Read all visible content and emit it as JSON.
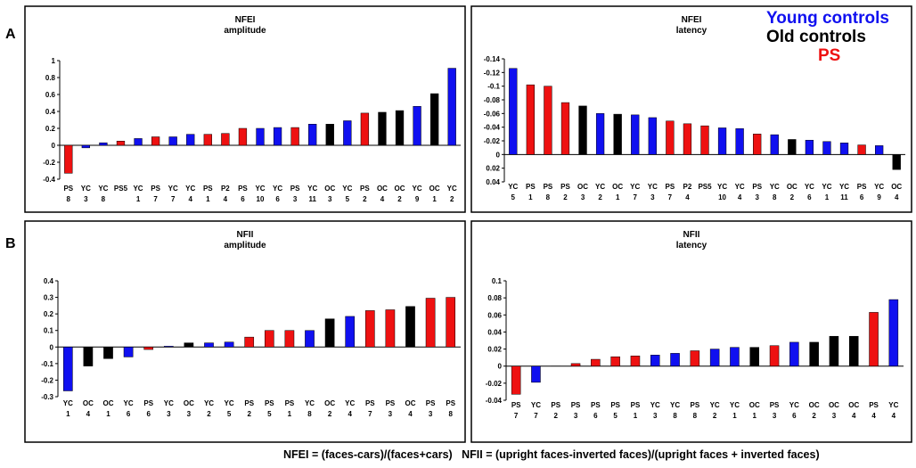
{
  "colors": {
    "YC": "#1010f0",
    "OC": "#000000",
    "PS": "#ee1111",
    "P2": "#ee1111"
  },
  "section_labels": {
    "a": "A",
    "b": "B"
  },
  "legend": {
    "young": "Young controls",
    "old": "Old controls",
    "ps": "PS"
  },
  "footer": {
    "nfei_def": "NFEI = (faces-cars)/(faces+cars)",
    "nfii_def": "NFII = (upright faces-inverted faces)/(upright faces + inverted faces)"
  },
  "chart_data": [
    {
      "type": "bar",
      "title": "NFEI",
      "subtitle": "amplitude",
      "ylim": [
        -0.4,
        1
      ],
      "yticks": [
        "1",
        "0.8",
        "0.6",
        "0.4",
        "0.2",
        "0",
        "-0.2",
        "-0.4"
      ],
      "categories": [
        {
          "g": "PS",
          "n": "8"
        },
        {
          "g": "YC",
          "n": "3"
        },
        {
          "g": "YC",
          "n": "8"
        },
        {
          "g": "PS5",
          "n": ""
        },
        {
          "g": "YC",
          "n": "1"
        },
        {
          "g": "PS",
          "n": "7"
        },
        {
          "g": "YC",
          "n": "7"
        },
        {
          "g": "YC",
          "n": "4"
        },
        {
          "g": "PS",
          "n": "1"
        },
        {
          "g": "P2",
          "n": "4"
        },
        {
          "g": "PS",
          "n": "6"
        },
        {
          "g": "YC",
          "n": "10"
        },
        {
          "g": "YC",
          "n": "6"
        },
        {
          "g": "PS",
          "n": "3"
        },
        {
          "g": "YC",
          "n": "11"
        },
        {
          "g": "OC",
          "n": "3"
        },
        {
          "g": "YC",
          "n": "5"
        },
        {
          "g": "PS",
          "n": "2"
        },
        {
          "g": "OC",
          "n": "4"
        },
        {
          "g": "OC",
          "n": "2"
        },
        {
          "g": "YC",
          "n": "9"
        },
        {
          "g": "OC",
          "n": "1"
        },
        {
          "g": "YC",
          "n": "2"
        }
      ],
      "values": [
        -0.33,
        -0.03,
        0.03,
        0.05,
        0.08,
        0.1,
        0.1,
        0.13,
        0.13,
        0.14,
        0.2,
        0.2,
        0.21,
        0.21,
        0.25,
        0.25,
        0.29,
        0.38,
        0.39,
        0.41,
        0.46,
        0.61,
        0.91
      ]
    },
    {
      "type": "bar",
      "title": "NFEI",
      "subtitle": "latency",
      "inverted_axis": true,
      "ylim": [
        0.04,
        -0.14
      ],
      "yticks": [
        "-0.14",
        "-0.12",
        "-0.1",
        "-0.08",
        "-0.06",
        "-0.04",
        "-0.02",
        "0",
        "0.02",
        "0.04"
      ],
      "categories": [
        {
          "g": "YC",
          "n": "5"
        },
        {
          "g": "PS",
          "n": "1"
        },
        {
          "g": "PS",
          "n": "8"
        },
        {
          "g": "PS",
          "n": "2"
        },
        {
          "g": "OC",
          "n": "3"
        },
        {
          "g": "YC",
          "n": "2"
        },
        {
          "g": "OC",
          "n": "1"
        },
        {
          "g": "YC",
          "n": "7"
        },
        {
          "g": "YC",
          "n": "3"
        },
        {
          "g": "PS",
          "n": "7"
        },
        {
          "g": "P2",
          "n": "4"
        },
        {
          "g": "PS5",
          "n": ""
        },
        {
          "g": "YC",
          "n": "10"
        },
        {
          "g": "YC",
          "n": "4"
        },
        {
          "g": "PS",
          "n": "3"
        },
        {
          "g": "YC",
          "n": "8"
        },
        {
          "g": "OC",
          "n": "2"
        },
        {
          "g": "YC",
          "n": "6"
        },
        {
          "g": "YC",
          "n": "1"
        },
        {
          "g": "YC",
          "n": "11"
        },
        {
          "g": "PS",
          "n": "6"
        },
        {
          "g": "YC",
          "n": "9"
        },
        {
          "g": "OC",
          "n": "4"
        }
      ],
      "values": [
        -0.126,
        -0.102,
        -0.1,
        -0.076,
        -0.071,
        -0.06,
        -0.059,
        -0.058,
        -0.054,
        -0.049,
        -0.045,
        -0.042,
        -0.039,
        -0.038,
        -0.03,
        -0.029,
        -0.022,
        -0.021,
        -0.019,
        -0.017,
        -0.014,
        -0.013,
        0.022
      ]
    },
    {
      "type": "bar",
      "title": "NFII",
      "subtitle": "amplitude",
      "ylim": [
        -0.3,
        0.4
      ],
      "yticks": [
        "0.4",
        "0.3",
        "0.2",
        "0.1",
        "0",
        "-0.1",
        "-0.2",
        "-0.3"
      ],
      "categories": [
        {
          "g": "YC",
          "n": "1"
        },
        {
          "g": "OC",
          "n": "4"
        },
        {
          "g": "OC",
          "n": "1"
        },
        {
          "g": "YC",
          "n": "6"
        },
        {
          "g": "PS",
          "n": "6"
        },
        {
          "g": "YC",
          "n": "3"
        },
        {
          "g": "OC",
          "n": "3"
        },
        {
          "g": "YC",
          "n": "2"
        },
        {
          "g": "YC",
          "n": "5"
        },
        {
          "g": "PS",
          "n": "2"
        },
        {
          "g": "PS",
          "n": "5"
        },
        {
          "g": "PS",
          "n": "1"
        },
        {
          "g": "YC",
          "n": "8"
        },
        {
          "g": "OC",
          "n": "2"
        },
        {
          "g": "YC",
          "n": "4"
        },
        {
          "g": "PS",
          "n": "7"
        },
        {
          "g": "PS",
          "n": "3"
        },
        {
          "g": "OC",
          "n": "4"
        },
        {
          "g": "PS",
          "n": "3"
        },
        {
          "g": "PS",
          "n": "8"
        }
      ],
      "values": [
        -0.265,
        -0.115,
        -0.07,
        -0.06,
        -0.015,
        0.005,
        0.025,
        0.025,
        0.03,
        0.06,
        0.1,
        0.1,
        0.1,
        0.17,
        0.185,
        0.22,
        0.225,
        0.245,
        0.295,
        0.3
      ]
    },
    {
      "type": "bar",
      "title": "NFII",
      "subtitle": "latency",
      "ylim": [
        -0.04,
        0.1
      ],
      "yticks": [
        "0.1",
        "0.08",
        "0.06",
        "0.04",
        "0.02",
        "0",
        "-0.02",
        "-0.04"
      ],
      "categories": [
        {
          "g": "PS",
          "n": "7"
        },
        {
          "g": "YC",
          "n": "7"
        },
        {
          "g": "PS",
          "n": "2"
        },
        {
          "g": "PS",
          "n": "3"
        },
        {
          "g": "PS",
          "n": "6"
        },
        {
          "g": "PS",
          "n": "5"
        },
        {
          "g": "PS",
          "n": "1"
        },
        {
          "g": "YC",
          "n": "3"
        },
        {
          "g": "YC",
          "n": "8"
        },
        {
          "g": "PS",
          "n": "8"
        },
        {
          "g": "YC",
          "n": "2"
        },
        {
          "g": "YC",
          "n": "1"
        },
        {
          "g": "OC",
          "n": "1"
        },
        {
          "g": "PS",
          "n": "3"
        },
        {
          "g": "YC",
          "n": "6"
        },
        {
          "g": "OC",
          "n": "2"
        },
        {
          "g": "OC",
          "n": "3"
        },
        {
          "g": "OC",
          "n": "4"
        },
        {
          "g": "PS",
          "n": "4"
        },
        {
          "g": "YC",
          "n": "4"
        }
      ],
      "values": [
        -0.033,
        -0.019,
        0,
        0.003,
        0.008,
        0.011,
        0.012,
        0.013,
        0.015,
        0.018,
        0.02,
        0.022,
        0.022,
        0.024,
        0.028,
        0.028,
        0.035,
        0.035,
        0.063,
        0.078
      ]
    }
  ]
}
